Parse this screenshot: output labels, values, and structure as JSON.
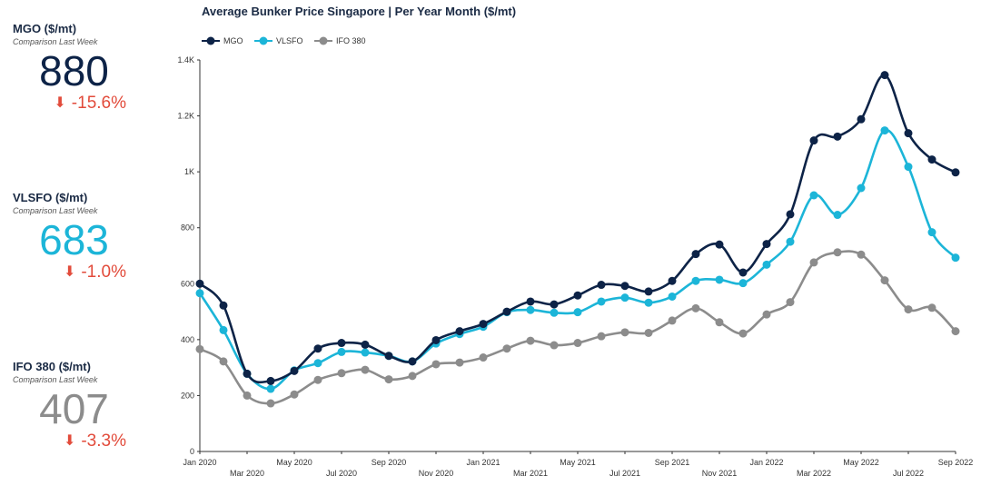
{
  "kpis": [
    {
      "title": "MGO ($/mt)",
      "subtitle": "Comparison Last Week",
      "value": "880",
      "change": "-15.6%",
      "color": "#0d2347",
      "direction": "down"
    },
    {
      "title": "VLSFO ($/mt)",
      "subtitle": "Comparison Last Week",
      "value": "683",
      "change": "-1.0%",
      "color": "#1cb5d8",
      "direction": "down"
    },
    {
      "title": "IFO 380 ($/mt)",
      "subtitle": "Comparison Last Week",
      "value": "407",
      "change": "-3.3%",
      "color": "#8c8c8c",
      "direction": "down"
    }
  ],
  "chart_data": {
    "type": "line",
    "title": "Average Bunker Price Singapore | Per Year Month ($/mt)",
    "ylim": [
      0,
      1400
    ],
    "y_ticks": [
      0,
      200,
      400,
      600,
      800,
      1000,
      1200,
      1400
    ],
    "y_tick_labels": [
      "0",
      "200",
      "400",
      "600",
      "800",
      "1K",
      "1.2K",
      "1.4K"
    ],
    "legend_position": "top-left",
    "x": [
      "Jan 2020",
      "Feb 2020",
      "Mar 2020",
      "Apr 2020",
      "May 2020",
      "Jun 2020",
      "Jul 2020",
      "Aug 2020",
      "Sep 2020",
      "Oct 2020",
      "Nov 2020",
      "Dec 2020",
      "Jan 2021",
      "Feb 2021",
      "Mar 2021",
      "Apr 2021",
      "May 2021",
      "Jun 2021",
      "Jul 2021",
      "Aug 2021",
      "Sep 2021",
      "Oct 2021",
      "Nov 2021",
      "Dec 2021",
      "Jan 2022",
      "Feb 2022",
      "Mar 2022",
      "Apr 2022",
      "May 2022",
      "Jun 2022",
      "Jul 2022",
      "Aug 2022",
      "Sep 2022"
    ],
    "x_tick_labels": [
      "Jan 2020",
      "Mar 2020",
      "May 2020",
      "Jul 2020",
      "Sep 2020",
      "Nov 2020",
      "Jan 2021",
      "Mar 2021",
      "May 2021",
      "Jul 2021",
      "Sep 2021",
      "Nov 2021",
      "Jan 2022",
      "Mar 2022",
      "May 2022",
      "Jul 2022",
      "Sep 2022"
    ],
    "series": [
      {
        "name": "MGO",
        "color": "#0d2347",
        "values": [
          600,
          522,
          278,
          252,
          288,
          368,
          388,
          382,
          342,
          322,
          398,
          430,
          456,
          500,
          536,
          526,
          558,
          596,
          592,
          572,
          610,
          706,
          740,
          640,
          742,
          848,
          1112,
          1126,
          1188,
          1346,
          1138,
          1044,
          998
        ]
      },
      {
        "name": "VLSFO",
        "color": "#1cb5d8",
        "values": [
          566,
          434,
          278,
          224,
          290,
          316,
          356,
          354,
          342,
          322,
          386,
          420,
          446,
          498,
          506,
          496,
          498,
          536,
          550,
          532,
          554,
          610,
          614,
          602,
          668,
          750,
          916,
          846,
          942,
          1148,
          1018,
          784,
          693
        ]
      },
      {
        "name": "IFO 380",
        "color": "#8c8c8c",
        "values": [
          366,
          322,
          200,
          172,
          204,
          256,
          280,
          292,
          258,
          270,
          312,
          318,
          336,
          368,
          396,
          380,
          388,
          412,
          426,
          424,
          468,
          512,
          462,
          422,
          490,
          534,
          676,
          712,
          704,
          612,
          508,
          514,
          430
        ]
      }
    ]
  }
}
